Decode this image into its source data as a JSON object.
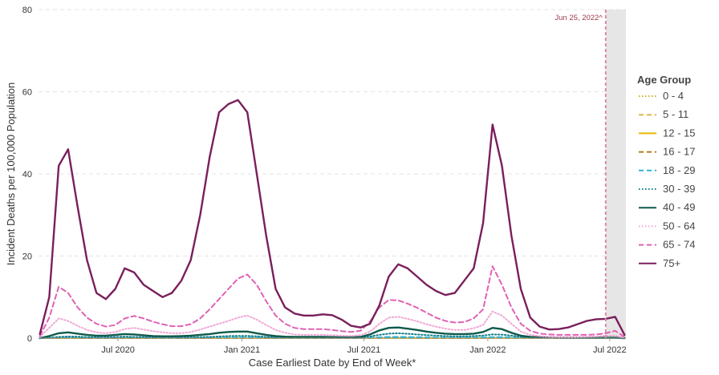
{
  "chart_data": {
    "type": "line",
    "xlabel": "Case Earliest Date by End of Week*",
    "ylabel": "Incident Deaths per 100,000 Population",
    "ylim": [
      0,
      80
    ],
    "y_ticks": [
      0,
      20,
      40,
      60,
      80
    ],
    "x_ticks": [
      {
        "date": "2020-07-01",
        "label": "Jul 2020"
      },
      {
        "date": "2021-01-01",
        "label": "Jan 2021"
      },
      {
        "date": "2021-07-01",
        "label": "Jul 2021"
      },
      {
        "date": "2022-01-01",
        "label": "Jan 2022"
      },
      {
        "date": "2022-07-01",
        "label": "Jul 2022"
      }
    ],
    "xlim": [
      "2020-03-05",
      "2022-07-25"
    ],
    "grid": "horizontal dashed",
    "legend_title": "Age Group",
    "legend_position": "right",
    "annotation": {
      "date": "2022-06-25",
      "label": "Jun 25, 2022^"
    },
    "shaded_region": {
      "start": "2022-06-25",
      "end": "2022-07-25",
      "color": "#e6e6e6"
    },
    "x": [
      "2020-03-07",
      "2020-03-21",
      "2020-04-04",
      "2020-04-18",
      "2020-05-02",
      "2020-05-16",
      "2020-05-30",
      "2020-06-13",
      "2020-06-27",
      "2020-07-11",
      "2020-07-25",
      "2020-08-08",
      "2020-08-22",
      "2020-09-05",
      "2020-09-19",
      "2020-10-03",
      "2020-10-17",
      "2020-10-31",
      "2020-11-14",
      "2020-11-28",
      "2020-12-12",
      "2020-12-26",
      "2021-01-09",
      "2021-01-23",
      "2021-02-06",
      "2021-02-20",
      "2021-03-06",
      "2021-03-20",
      "2021-04-03",
      "2021-04-17",
      "2021-05-01",
      "2021-05-15",
      "2021-05-29",
      "2021-06-12",
      "2021-06-26",
      "2021-07-10",
      "2021-07-24",
      "2021-08-07",
      "2021-08-21",
      "2021-09-04",
      "2021-09-18",
      "2021-10-02",
      "2021-10-16",
      "2021-10-30",
      "2021-11-13",
      "2021-11-27",
      "2021-12-11",
      "2021-12-25",
      "2022-01-08",
      "2022-01-22",
      "2022-02-05",
      "2022-02-19",
      "2022-03-05",
      "2022-03-19",
      "2022-04-02",
      "2022-04-16",
      "2022-04-30",
      "2022-05-14",
      "2022-05-28",
      "2022-06-11",
      "2022-06-25",
      "2022-07-09",
      "2022-07-23"
    ],
    "series": [
      {
        "name": "0 - 4",
        "color": "#c9b52a",
        "dash": "1.5,2.5",
        "values": [
          0,
          0.01,
          0.02,
          0.02,
          0.01,
          0.01,
          0.01,
          0.01,
          0.01,
          0.01,
          0.01,
          0.01,
          0.01,
          0.01,
          0.01,
          0.01,
          0.01,
          0.01,
          0.01,
          0.01,
          0.02,
          0.02,
          0.02,
          0.02,
          0.01,
          0.01,
          0.01,
          0.01,
          0.01,
          0.01,
          0.01,
          0.01,
          0.01,
          0.01,
          0.01,
          0.01,
          0.02,
          0.03,
          0.03,
          0.03,
          0.02,
          0.02,
          0.02,
          0.02,
          0.02,
          0.02,
          0.03,
          0.04,
          0.05,
          0.05,
          0.04,
          0.03,
          0.02,
          0.01,
          0.01,
          0.01,
          0.01,
          0.01,
          0.01,
          0.01,
          0.01,
          0.01,
          0
        ]
      },
      {
        "name": "5 - 11",
        "color": "#e0b64a",
        "dash": "6,4",
        "values": [
          0,
          0.01,
          0.01,
          0.01,
          0.01,
          0.01,
          0.01,
          0.01,
          0.01,
          0.01,
          0.01,
          0.01,
          0.01,
          0.01,
          0.01,
          0.01,
          0.01,
          0.01,
          0.01,
          0.01,
          0.01,
          0.01,
          0.01,
          0.01,
          0.01,
          0.01,
          0.01,
          0.01,
          0.01,
          0.01,
          0.01,
          0.01,
          0.01,
          0.01,
          0.01,
          0.01,
          0.01,
          0.02,
          0.02,
          0.02,
          0.02,
          0.01,
          0.01,
          0.01,
          0.01,
          0.01,
          0.02,
          0.03,
          0.03,
          0.03,
          0.02,
          0.02,
          0.01,
          0.01,
          0.01,
          0.01,
          0.01,
          0.01,
          0.01,
          0.01,
          0.01,
          0.01,
          0
        ]
      },
      {
        "name": "12 - 15",
        "color": "#e8b800",
        "dash": "",
        "values": [
          0,
          0.01,
          0.02,
          0.02,
          0.02,
          0.01,
          0.01,
          0.01,
          0.01,
          0.01,
          0.01,
          0.01,
          0.01,
          0.01,
          0.01,
          0.01,
          0.01,
          0.01,
          0.01,
          0.02,
          0.02,
          0.02,
          0.02,
          0.02,
          0.02,
          0.01,
          0.01,
          0.01,
          0.01,
          0.01,
          0.01,
          0.01,
          0.01,
          0.01,
          0.01,
          0.02,
          0.03,
          0.04,
          0.04,
          0.04,
          0.03,
          0.03,
          0.02,
          0.02,
          0.02,
          0.02,
          0.03,
          0.04,
          0.05,
          0.05,
          0.04,
          0.03,
          0.02,
          0.01,
          0.01,
          0.01,
          0.01,
          0.01,
          0.01,
          0.01,
          0.01,
          0.01,
          0
        ]
      },
      {
        "name": "16 - 17",
        "color": "#b07a1a",
        "dash": "6,4",
        "values": [
          0,
          0.02,
          0.03,
          0.04,
          0.03,
          0.02,
          0.02,
          0.02,
          0.02,
          0.02,
          0.02,
          0.02,
          0.02,
          0.02,
          0.02,
          0.02,
          0.02,
          0.02,
          0.03,
          0.03,
          0.04,
          0.04,
          0.04,
          0.04,
          0.03,
          0.02,
          0.02,
          0.02,
          0.02,
          0.02,
          0.02,
          0.02,
          0.02,
          0.02,
          0.02,
          0.03,
          0.05,
          0.07,
          0.08,
          0.07,
          0.06,
          0.05,
          0.04,
          0.04,
          0.03,
          0.03,
          0.04,
          0.06,
          0.08,
          0.08,
          0.06,
          0.04,
          0.03,
          0.02,
          0.02,
          0.02,
          0.01,
          0.01,
          0.01,
          0.01,
          0.01,
          0.01,
          0
        ]
      },
      {
        "name": "18 - 29",
        "color": "#2bb5d6",
        "dash": "6,4",
        "values": [
          0,
          0.05,
          0.1,
          0.12,
          0.1,
          0.07,
          0.06,
          0.06,
          0.08,
          0.1,
          0.09,
          0.08,
          0.07,
          0.06,
          0.06,
          0.06,
          0.07,
          0.08,
          0.1,
          0.12,
          0.14,
          0.15,
          0.16,
          0.14,
          0.1,
          0.07,
          0.06,
          0.05,
          0.05,
          0.05,
          0.05,
          0.04,
          0.04,
          0.04,
          0.05,
          0.1,
          0.2,
          0.3,
          0.32,
          0.28,
          0.24,
          0.2,
          0.16,
          0.13,
          0.12,
          0.12,
          0.14,
          0.18,
          0.25,
          0.24,
          0.18,
          0.12,
          0.07,
          0.05,
          0.04,
          0.03,
          0.03,
          0.03,
          0.03,
          0.03,
          0.03,
          0.03,
          0
        ]
      },
      {
        "name": "30 - 39",
        "color": "#0f7f8f",
        "dash": "1.5,2.5",
        "values": [
          0,
          0.1,
          0.3,
          0.4,
          0.35,
          0.25,
          0.2,
          0.2,
          0.3,
          0.35,
          0.3,
          0.25,
          0.2,
          0.18,
          0.18,
          0.18,
          0.2,
          0.25,
          0.3,
          0.4,
          0.5,
          0.55,
          0.55,
          0.45,
          0.3,
          0.2,
          0.15,
          0.15,
          0.15,
          0.15,
          0.15,
          0.12,
          0.1,
          0.1,
          0.15,
          0.4,
          0.8,
          1.1,
          1.2,
          1.05,
          0.9,
          0.75,
          0.6,
          0.5,
          0.45,
          0.45,
          0.5,
          0.65,
          0.9,
          0.85,
          0.6,
          0.35,
          0.2,
          0.12,
          0.1,
          0.08,
          0.08,
          0.08,
          0.08,
          0.08,
          0.08,
          0.08,
          0
        ]
      },
      {
        "name": "40 - 49",
        "color": "#0e5a4c",
        "dash": "",
        "values": [
          0,
          0.5,
          1.2,
          1.4,
          1.1,
          0.8,
          0.6,
          0.6,
          0.8,
          1.0,
          0.9,
          0.7,
          0.5,
          0.45,
          0.45,
          0.5,
          0.6,
          0.8,
          1.0,
          1.3,
          1.5,
          1.6,
          1.6,
          1.2,
          0.8,
          0.5,
          0.35,
          0.3,
          0.3,
          0.3,
          0.3,
          0.25,
          0.2,
          0.2,
          0.3,
          0.9,
          1.9,
          2.5,
          2.6,
          2.3,
          2.0,
          1.6,
          1.3,
          1.1,
          1.0,
          1.0,
          1.1,
          1.5,
          2.5,
          2.2,
          1.3,
          0.6,
          0.3,
          0.2,
          0.15,
          0.1,
          0.1,
          0.1,
          0.1,
          0.1,
          0.1,
          0.1,
          0
        ]
      },
      {
        "name": "50 - 64",
        "color": "#f0a8d6",
        "dash": "1.5,2.5",
        "values": [
          0.3,
          2.5,
          4.8,
          4.2,
          3.0,
          2.0,
          1.4,
          1.2,
          1.5,
          2.2,
          2.5,
          2.1,
          1.7,
          1.4,
          1.2,
          1.2,
          1.5,
          2.1,
          2.8,
          3.5,
          4.2,
          5.0,
          5.5,
          4.5,
          3.2,
          2.0,
          1.3,
          0.9,
          0.8,
          0.8,
          0.8,
          0.7,
          0.6,
          0.55,
          0.7,
          1.6,
          3.5,
          5.0,
          5.2,
          4.7,
          4.1,
          3.4,
          2.8,
          2.3,
          2.0,
          2.0,
          2.4,
          3.2,
          6.5,
          5.5,
          3.5,
          1.6,
          0.8,
          0.5,
          0.35,
          0.3,
          0.3,
          0.3,
          0.35,
          0.4,
          0.6,
          0.6,
          0.1
        ]
      },
      {
        "name": "65 - 74",
        "color": "#e062b4",
        "dash": "6,4",
        "values": [
          0.5,
          5,
          12.5,
          11,
          7.5,
          5,
          3.5,
          2.8,
          3.2,
          4.8,
          5.4,
          4.8,
          4,
          3.4,
          2.9,
          2.9,
          3.4,
          4.8,
          7,
          9.5,
          12,
          14.5,
          15.5,
          13,
          9,
          5.5,
          3.5,
          2.5,
          2.2,
          2.2,
          2.2,
          2,
          1.7,
          1.5,
          1.8,
          4,
          7.5,
          9.3,
          9.2,
          8.4,
          7.4,
          6.2,
          5,
          4.2,
          3.8,
          3.9,
          4.8,
          7,
          17.5,
          13,
          7.5,
          3.5,
          1.8,
          1.1,
          0.9,
          0.8,
          0.8,
          0.8,
          0.8,
          0.9,
          1.2,
          1.8,
          0.3
        ]
      },
      {
        "name": "75+",
        "color": "#7a1f5c",
        "dash": "",
        "values": [
          1,
          10,
          42,
          46,
          32,
          19,
          11,
          9.5,
          12,
          17,
          16,
          13,
          11.5,
          10,
          11,
          14,
          19,
          30,
          44,
          55,
          57,
          58,
          55,
          40,
          25,
          12,
          7.5,
          6,
          5.5,
          5.5,
          5.8,
          5.6,
          4.5,
          3,
          2.6,
          3.5,
          8,
          15,
          18,
          17,
          15,
          13,
          11.5,
          10.5,
          11,
          14,
          17,
          28,
          52,
          42,
          25,
          12,
          5,
          2.8,
          2.1,
          2.2,
          2.6,
          3.4,
          4.2,
          4.6,
          4.7,
          5.2,
          0.8
        ]
      }
    ]
  }
}
